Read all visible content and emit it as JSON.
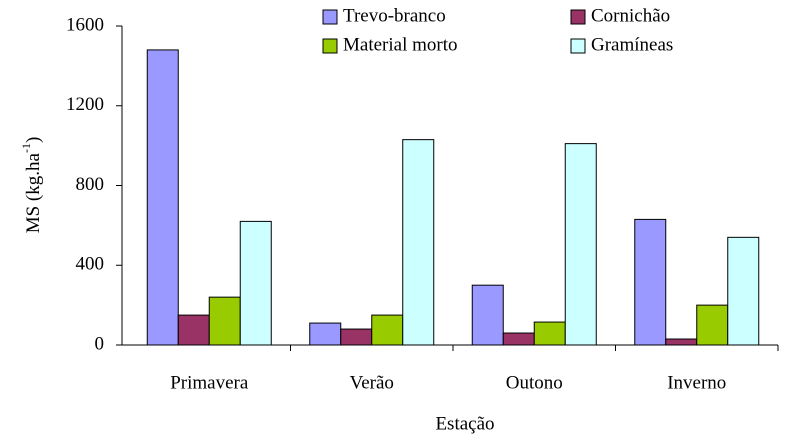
{
  "chart_data": {
    "type": "bar",
    "x_label": "Estação",
    "y_label": "MS (kg.ha",
    "y_label_sup": "-1",
    "y_label_end": ")",
    "categories": [
      "Primavera",
      "Verão",
      "Outono",
      "Inverno"
    ],
    "series": [
      {
        "name": "Trevo-branco",
        "color": "#9999ff",
        "values": [
          1480,
          110,
          300,
          630
        ]
      },
      {
        "name": "Cornichão",
        "color": "#993366",
        "values": [
          150,
          80,
          60,
          30
        ]
      },
      {
        "name": "Material morto",
        "color": "#99cc00",
        "values": [
          240,
          150,
          115,
          200
        ]
      },
      {
        "name": "Gramíneas",
        "color": "#ccffff",
        "values": [
          620,
          1030,
          1010,
          540
        ]
      }
    ],
    "ylim": [
      0,
      1600
    ],
    "yticks": [
      0,
      400,
      800,
      1200,
      1600
    ],
    "legend": "top"
  }
}
